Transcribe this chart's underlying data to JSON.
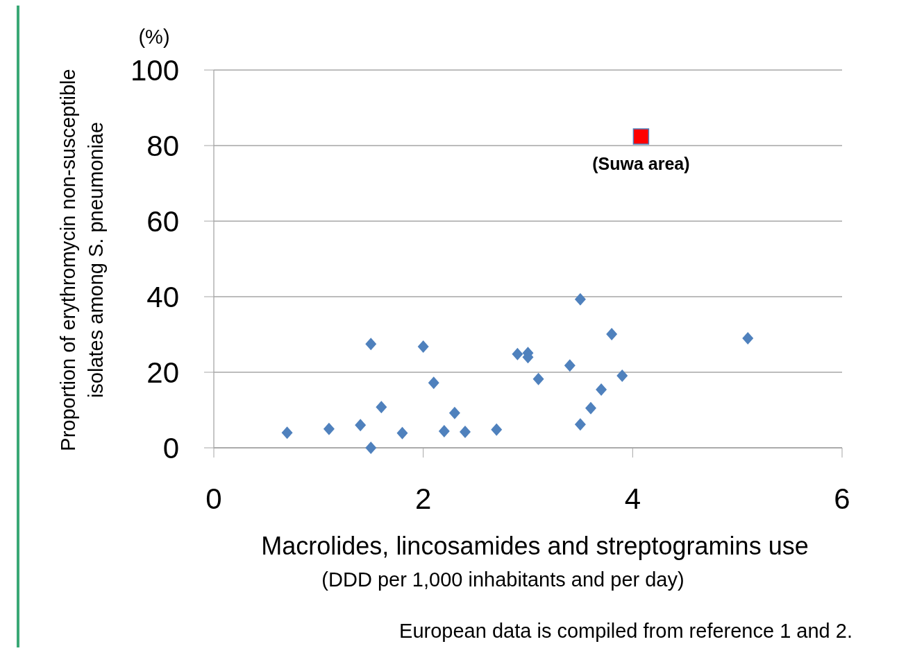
{
  "chart_data": {
    "type": "scatter",
    "xlabel": "Macrolides, lincosamides and streptogramins use\n(DDD per 1,000 inhabitants and per day)",
    "ylabel": "Proportion of erythromycin non-susceptible\nisolates among S. pneumoniae",
    "xlim": [
      0,
      6
    ],
    "xticks": [
      0,
      2,
      4,
      6
    ],
    "ylim": [
      0,
      100
    ],
    "yticks": [
      0,
      20,
      40,
      60,
      80,
      100
    ],
    "grid": "y",
    "series": [
      {
        "color": "#4f81bd",
        "marker": "diamond",
        "x": [
          0.7,
          1.1,
          1.4,
          1.5,
          1.5,
          1.6,
          1.8,
          2.0,
          2.1,
          2.2,
          2.3,
          2.4,
          2.7,
          2.9,
          3.0,
          3.0,
          3.1,
          3.4,
          3.5,
          3.5,
          3.6,
          3.7,
          3.8,
          3.9,
          5.1
        ],
        "values": [
          4,
          5,
          6,
          27.5,
          0,
          10.8,
          3.9,
          26.8,
          17.2,
          4.4,
          9.2,
          4.2,
          4.8,
          24.8,
          25.1,
          24,
          18.2,
          21.8,
          39.3,
          6.2,
          10.5,
          15.4,
          30.1,
          19.1,
          29
        ]
      },
      {
        "color": "#ff0000",
        "marker": "square",
        "x": [
          4.08
        ],
        "values": [
          82.4
        ]
      }
    ],
    "annotations": [
      {
        "text": "(Suwa area)",
        "x": 4.08,
        "y": 82.4
      },
      "(%)",
      "European data is compiled from reference 1 and 2."
    ]
  }
}
